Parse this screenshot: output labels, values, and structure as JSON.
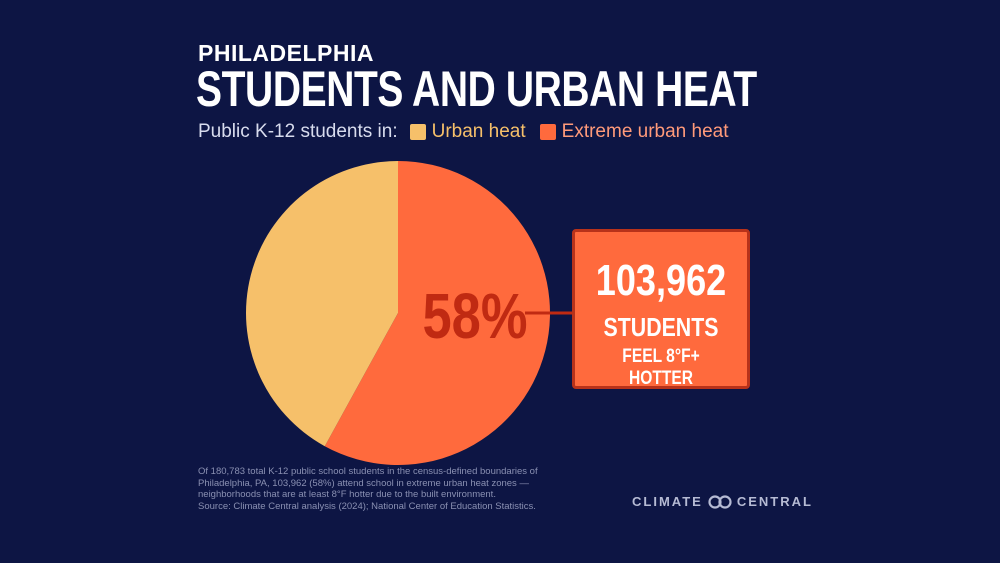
{
  "header": {
    "city": "PHILADELPHIA",
    "title": "STUDENTS AND URBAN HEAT"
  },
  "legend": {
    "label": "Public K-12 students in:",
    "items": [
      {
        "name": "Urban heat",
        "color": "#f6c06a"
      },
      {
        "name": "Extreme urban heat",
        "color": "#ff6a3d"
      }
    ]
  },
  "chart_data": {
    "type": "pie",
    "title": "STUDENTS AND URBAN HEAT",
    "slices": [
      {
        "label": "Extreme urban heat",
        "value": 58,
        "color": "#ff6a3d"
      },
      {
        "label": "Urban heat",
        "value": 42,
        "color": "#f6c06a"
      }
    ],
    "data_labels": [
      "58%"
    ],
    "label_color": "#c02a12"
  },
  "callout": {
    "number": "103,962",
    "line1": "STUDENTS",
    "line2": "FEEL 8°F+ HOTTER"
  },
  "footnote": {
    "text": "Of 180,783 total K-12 public school students in the census-defined boundaries of Philadelphia, PA, 103,962 (58%) attend school in extreme urban heat zones — neighborhoods that are at least 8°F hotter due to the built environment.",
    "source": "Source: Climate Central analysis (2024); National Center of Education Statistics."
  },
  "brand": {
    "left": "CLIMATE",
    "right": "CENTRAL",
    "icon": "climate-central-logo-icon"
  }
}
